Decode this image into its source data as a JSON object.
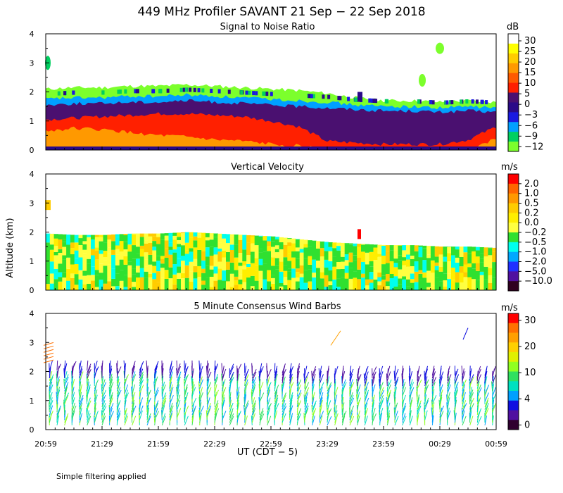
{
  "figure": {
    "title": "449 MHz Profiler SAVANT 21 Sep − 22 Sep 2018",
    "ylabel": "Altitude (km)",
    "xlabel": "UT  (CDT − 5)",
    "footnote": "Simple filtering applied",
    "time_ticks": [
      "20:59",
      "21:29",
      "21:59",
      "22:29",
      "22:59",
      "23:29",
      "23:59",
      "00:29",
      "00:59"
    ],
    "altitude_ticks": [
      0,
      1,
      2,
      3,
      4
    ]
  },
  "chart_data": [
    {
      "type": "heatmap",
      "title": "Signal to Noise Ratio",
      "units": "dB",
      "x": [
        "20:59",
        "00:59"
      ],
      "ylim": [
        0,
        4
      ],
      "colorbar": {
        "labels": [
          "30",
          "25",
          "20",
          "15",
          "10",
          "5",
          "0",
          "−3",
          "−6",
          "−9",
          "−12"
        ],
        "colors": [
          "#ffffff",
          "#ffff00",
          "#ffcc00",
          "#ff9900",
          "#ff5a00",
          "#ff2000",
          "#4a1070",
          "#2a0a88",
          "#1a1ae0",
          "#00a0ff",
          "#00d060",
          "#7cff2c"
        ]
      },
      "layers": [
        {
          "level": "-12 dB",
          "top_km": [
            2.1,
            2.15,
            2.15,
            2.2,
            2.2,
            2.25,
            2.2,
            2.15,
            2.1,
            2.05,
            1.95,
            1.8,
            1.7,
            1.7,
            1.65,
            1.7,
            1.65
          ]
        },
        {
          "level": "-6 dB",
          "top_km": [
            1.75,
            1.8,
            1.8,
            1.85,
            1.85,
            1.9,
            1.85,
            1.8,
            1.75,
            1.7,
            1.65,
            1.55,
            1.5,
            1.5,
            1.45,
            1.5,
            1.45
          ]
        },
        {
          "level": "0 dB",
          "top_km": [
            1.55,
            1.6,
            1.6,
            1.65,
            1.65,
            1.7,
            1.65,
            1.6,
            1.55,
            1.5,
            1.45,
            1.4,
            1.35,
            1.35,
            1.3,
            1.35,
            1.3
          ]
        },
        {
          "level": "10 dB",
          "top_km": [
            1.05,
            1.1,
            1.15,
            1.2,
            1.25,
            1.25,
            1.2,
            1.15,
            1.0,
            0.8,
            0.3,
            0.25,
            0.2,
            0.2,
            0.2,
            0.35,
            0.8
          ]
        },
        {
          "level": "20 dB",
          "top_km": [
            0.65,
            0.75,
            0.7,
            0.6,
            0.5,
            0.45,
            0.35,
            0.3,
            0.2,
            0.15,
            0.0,
            0.0,
            0.0,
            0.0,
            0.0,
            0.0,
            0.4
          ]
        }
      ]
    },
    {
      "type": "heatmap",
      "title": "Vertical Velocity",
      "units": "m/s",
      "x": [
        "20:59",
        "00:59"
      ],
      "ylim": [
        0,
        4
      ],
      "colorbar": {
        "labels": [
          "2.0",
          "1.0",
          "0.5",
          "0.2",
          "0.0",
          "−0.2",
          "−0.5",
          "−1.0",
          "−2.0",
          "−5.0",
          "−10.0"
        ],
        "colors": [
          "#ff0000",
          "#ff6600",
          "#ff9900",
          "#ffcc00",
          "#ffee00",
          "#ffff40",
          "#30e030",
          "#00ffee",
          "#00a8ff",
          "#2030ff",
          "#5010a0",
          "#300020"
        ]
      },
      "echo_top_km": [
        1.95,
        1.9,
        1.9,
        1.95,
        1.95,
        2.0,
        1.95,
        1.9,
        1.85,
        1.75,
        1.65,
        1.6,
        1.55,
        1.55,
        1.5,
        1.5,
        1.45
      ]
    },
    {
      "type": "scatter",
      "title": "5 Minute Consensus Wind Barbs",
      "units": "m/s",
      "x": [
        "20:59",
        "00:59"
      ],
      "ylim": [
        0,
        4
      ],
      "colorbar": {
        "labels": [
          "30",
          "20",
          "10",
          "4",
          "0"
        ],
        "colors": [
          "#ff0000",
          "#ff7000",
          "#ffa000",
          "#ffd000",
          "#e0f000",
          "#90ff20",
          "#30e060",
          "#00e0c0",
          "#00a0ff",
          "#1010e0",
          "#5010a0",
          "#300030"
        ]
      },
      "wind_top_km": [
        2.1,
        2.1,
        2.1,
        2.1,
        2.1,
        2.1,
        2.05,
        2.0,
        2.0,
        1.95,
        1.95,
        1.9,
        1.9,
        1.9,
        1.9,
        1.95,
        1.95
      ]
    }
  ]
}
